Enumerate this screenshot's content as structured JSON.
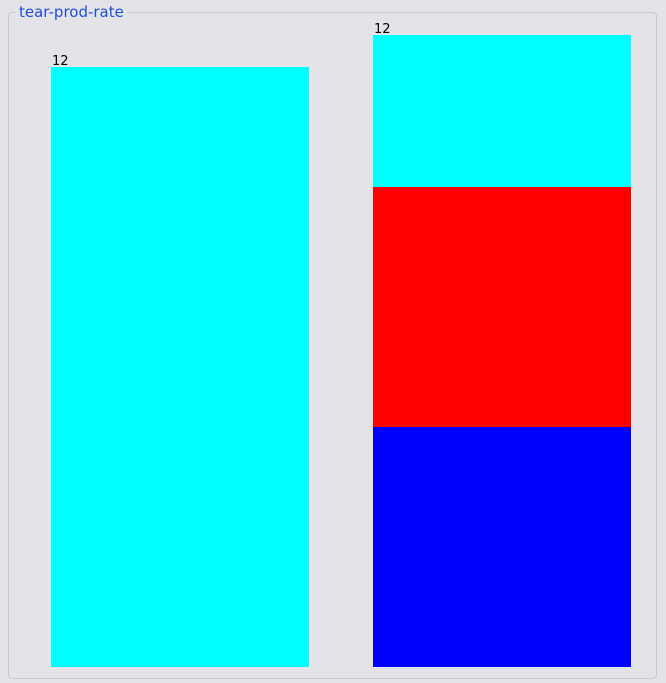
{
  "groupbox": {
    "title": "tear-prod-rate"
  },
  "chart_data": {
    "type": "bar",
    "stacked": true,
    "title": "tear-prod-rate",
    "categories": [
      "",
      ""
    ],
    "totals": [
      12,
      12
    ],
    "ylim": [
      0,
      12
    ],
    "series": [
      {
        "color": "#0000ff",
        "values": [
          0,
          4.8
        ]
      },
      {
        "color": "#ff0000",
        "values": [
          0,
          4.8
        ]
      },
      {
        "color": "#00ffff",
        "values": [
          12,
          3.0
        ]
      }
    ],
    "grid": false,
    "legend": "none"
  }
}
